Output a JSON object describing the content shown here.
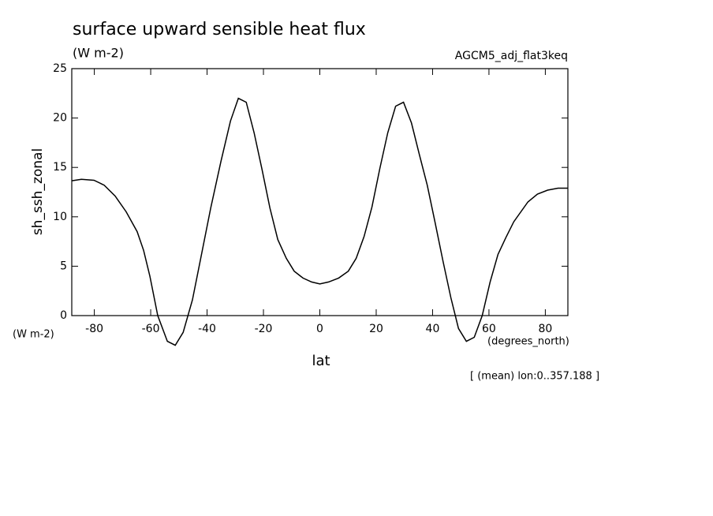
{
  "chart_data": {
    "type": "line",
    "title": "surface upward sensible heat flux",
    "subtitle": "(W m-2)",
    "dataset": "AGCM5_adj_flat3keq",
    "y_label": "sh_ssh_zonal",
    "y_units": "(W m-2)",
    "x_label": "lat",
    "x_units": "(degrees_north)",
    "annotation": "[ (mean) lon:0..357.188 ]",
    "x": [
      -88,
      -84.6,
      -80.1,
      -76.5,
      -72.6,
      -68.7,
      -64.8,
      -62.5,
      -60.3,
      -57.5,
      -54.1,
      -51.3,
      -48.5,
      -45.2,
      -42.1,
      -38.7,
      -35.1,
      -31.7,
      -28.9,
      -26.1,
      -23.3,
      -20.5,
      -17.7,
      -14.9,
      -11.9,
      -9.1,
      -6.0,
      -2.9,
      0,
      3.1,
      6.7,
      10.1,
      12.9,
      15.7,
      18.5,
      21.3,
      24.1,
      26.9,
      29.7,
      32.5,
      35.3,
      38.1,
      40.9,
      43.7,
      46.5,
      49.2,
      52.0,
      54.8,
      57.6,
      60.4,
      63.2,
      66.0,
      68.8,
      73.8,
      77.2,
      80.8,
      84.5,
      88
    ],
    "series": [
      {
        "color": "#000000",
        "values": [
          13.65,
          13.8,
          13.7,
          13.2,
          12.1,
          10.5,
          8.5,
          6.6,
          4.0,
          0,
          -2.6,
          -3.0,
          -1.7,
          1.6,
          6.0,
          10.9,
          15.6,
          19.7,
          22.0,
          21.6,
          18.5,
          14.8,
          10.9,
          7.7,
          5.8,
          4.5,
          3.8,
          3.4,
          3.2,
          3.4,
          3.8,
          4.5,
          5.8,
          8.0,
          11.0,
          14.9,
          18.5,
          21.2,
          21.6,
          19.5,
          16.3,
          13.2,
          9.4,
          5.5,
          1.8,
          -1.3,
          -2.6,
          -2.2,
          0,
          3.4,
          6.2,
          7.9,
          9.5,
          11.5,
          12.3,
          12.7,
          12.9,
          12.9
        ]
      }
    ],
    "xlim": [
      -88,
      88
    ],
    "ylim": [
      0,
      25
    ],
    "xticks": [
      -80,
      -60,
      -40,
      -20,
      0,
      20,
      40,
      60,
      80
    ],
    "yticks": [
      0,
      5,
      10,
      15,
      20,
      25
    ]
  }
}
